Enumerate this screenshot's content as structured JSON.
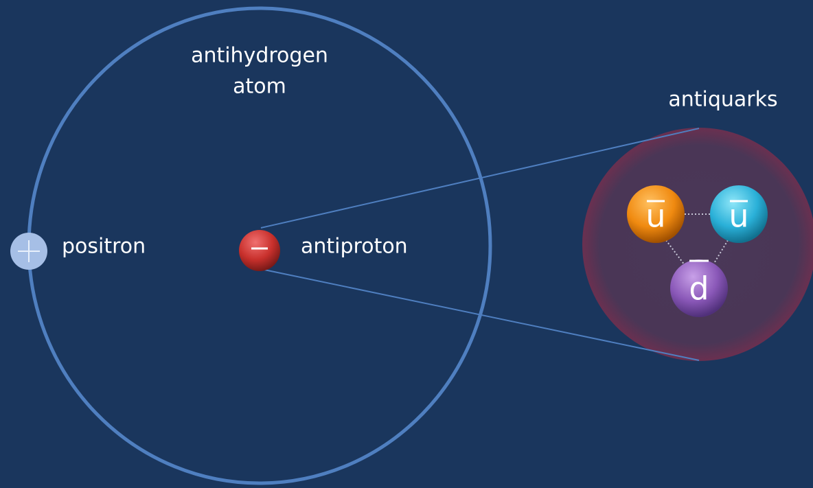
{
  "title": [
    "antihydrogen",
    "atom"
  ],
  "positron": "positron",
  "antiproton": "antiproton",
  "antiquarks": "antiquarks",
  "quarks": [
    "u",
    "u",
    "d"
  ]
}
